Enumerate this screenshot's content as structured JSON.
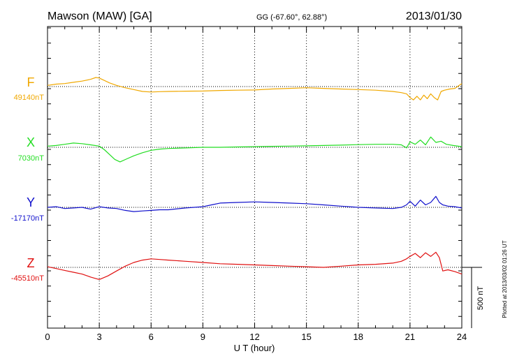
{
  "header": {
    "station": "Mawson (MAW)  [GA]",
    "coords": "GG (-67.60°,  62.88°)",
    "date": "2013/01/30"
  },
  "side_note": "Plotted at 2013/03/02 01:26 UT",
  "chart_data": {
    "type": "line",
    "xlabel": "U T (hour)",
    "xlim": [
      0,
      24
    ],
    "xticks": [
      "0",
      "3",
      "6",
      "9",
      "12",
      "15",
      "18",
      "21",
      "24"
    ],
    "scale_bar": {
      "label": "500 nT",
      "value_nT": 500
    },
    "grid": "vertical dotted every 3 h; dotted baseline per component",
    "series": [
      {
        "name": "F",
        "baseline_label": "49140nT",
        "baseline_nT": 49140,
        "color": "#f0a800",
        "x": [
          0,
          0.5,
          1,
          1.5,
          2,
          2.5,
          2.8,
          3,
          3.3,
          3.6,
          4,
          4.5,
          5,
          5.5,
          6,
          6.5,
          7,
          8,
          9,
          10,
          11,
          12,
          13,
          14,
          15,
          16,
          17,
          18,
          19,
          20,
          20.5,
          20.8,
          21,
          21.2,
          21.4,
          21.6,
          21.8,
          22,
          22.2,
          22.4,
          22.6,
          22.8,
          23,
          23.3,
          23.6,
          24
        ],
        "y": [
          49150,
          49160,
          49165,
          49175,
          49185,
          49200,
          49215,
          49210,
          49190,
          49170,
          49150,
          49130,
          49115,
          49100,
          49095,
          49098,
          49100,
          49102,
          49103,
          49108,
          49110,
          49112,
          49120,
          49125,
          49130,
          49125,
          49120,
          49115,
          49110,
          49100,
          49090,
          49080,
          49050,
          49030,
          49060,
          49030,
          49070,
          49040,
          49080,
          49050,
          49030,
          49100,
          49110,
          49120,
          49125,
          49165
        ]
      },
      {
        "name": "X",
        "baseline_label": "7030nT",
        "baseline_nT": 7030,
        "color": "#22dd22",
        "x": [
          0,
          0.5,
          1,
          1.5,
          2,
          2.5,
          3,
          3.3,
          3.6,
          3.9,
          4.2,
          4.6,
          5,
          5.5,
          6,
          6.5,
          7,
          8,
          9,
          10,
          11,
          12,
          13,
          14,
          15,
          16,
          17,
          18,
          19,
          20,
          20.5,
          20.8,
          21,
          21.3,
          21.6,
          21.9,
          22.2,
          22.5,
          22.8,
          23.1,
          23.5,
          24
        ],
        "y": [
          7040,
          7045,
          7055,
          7065,
          7060,
          7050,
          7040,
          7010,
          6970,
          6930,
          6910,
          6935,
          6960,
          6985,
          7005,
          7015,
          7020,
          7025,
          7030,
          7030,
          7033,
          7035,
          7038,
          7040,
          7042,
          7045,
          7048,
          7052,
          7055,
          7055,
          7050,
          7025,
          7075,
          7055,
          7090,
          7050,
          7115,
          7070,
          7080,
          7055,
          7045,
          7035
        ]
      },
      {
        "name": "Y",
        "baseline_label": "-17170nT",
        "baseline_nT": -17170,
        "color": "#1010cc",
        "x": [
          0,
          0.5,
          1,
          1.5,
          2,
          2.5,
          3,
          3.5,
          4,
          4.5,
          5,
          5.5,
          6,
          6.5,
          7,
          8,
          9,
          9.5,
          10,
          11,
          12,
          13,
          14,
          15,
          16,
          17,
          18,
          19,
          20,
          20.5,
          20.8,
          21,
          21.3,
          21.6,
          21.9,
          22.2,
          22.5,
          22.7,
          22.9,
          23.2,
          23.6,
          24
        ],
        "y": [
          -17170,
          -17165,
          -17180,
          -17175,
          -17170,
          -17185,
          -17165,
          -17175,
          -17180,
          -17195,
          -17205,
          -17200,
          -17195,
          -17190,
          -17190,
          -17175,
          -17165,
          -17150,
          -17135,
          -17130,
          -17125,
          -17130,
          -17135,
          -17140,
          -17150,
          -17160,
          -17170,
          -17175,
          -17180,
          -17170,
          -17150,
          -17120,
          -17160,
          -17110,
          -17150,
          -17130,
          -17080,
          -17130,
          -17150,
          -17160,
          -17165,
          -17175
        ]
      },
      {
        "name": "Z",
        "baseline_label": "-45510nT",
        "baseline_nT": -45510,
        "color": "#e01010",
        "x": [
          0,
          0.5,
          1,
          1.5,
          2,
          2.5,
          3,
          3.5,
          4,
          4.5,
          5,
          5.5,
          6,
          6.5,
          7,
          8,
          9,
          10,
          11,
          12,
          13,
          14,
          15,
          16,
          17,
          18,
          19,
          20,
          20.5,
          20.8,
          21,
          21.3,
          21.6,
          21.9,
          22.2,
          22.5,
          22.7,
          22.9,
          23.2,
          23.6,
          24
        ],
        "y": [
          -45505,
          -45520,
          -45535,
          -45550,
          -45565,
          -45590,
          -45610,
          -45580,
          -45540,
          -45500,
          -45470,
          -45450,
          -45440,
          -45445,
          -45450,
          -45460,
          -45470,
          -45480,
          -45485,
          -45490,
          -45495,
          -45500,
          -45505,
          -45510,
          -45500,
          -45490,
          -45485,
          -45475,
          -45460,
          -45440,
          -45420,
          -45395,
          -45430,
          -45390,
          -45420,
          -45385,
          -45430,
          -45540,
          -45530,
          -45545,
          -45565
        ]
      }
    ]
  }
}
